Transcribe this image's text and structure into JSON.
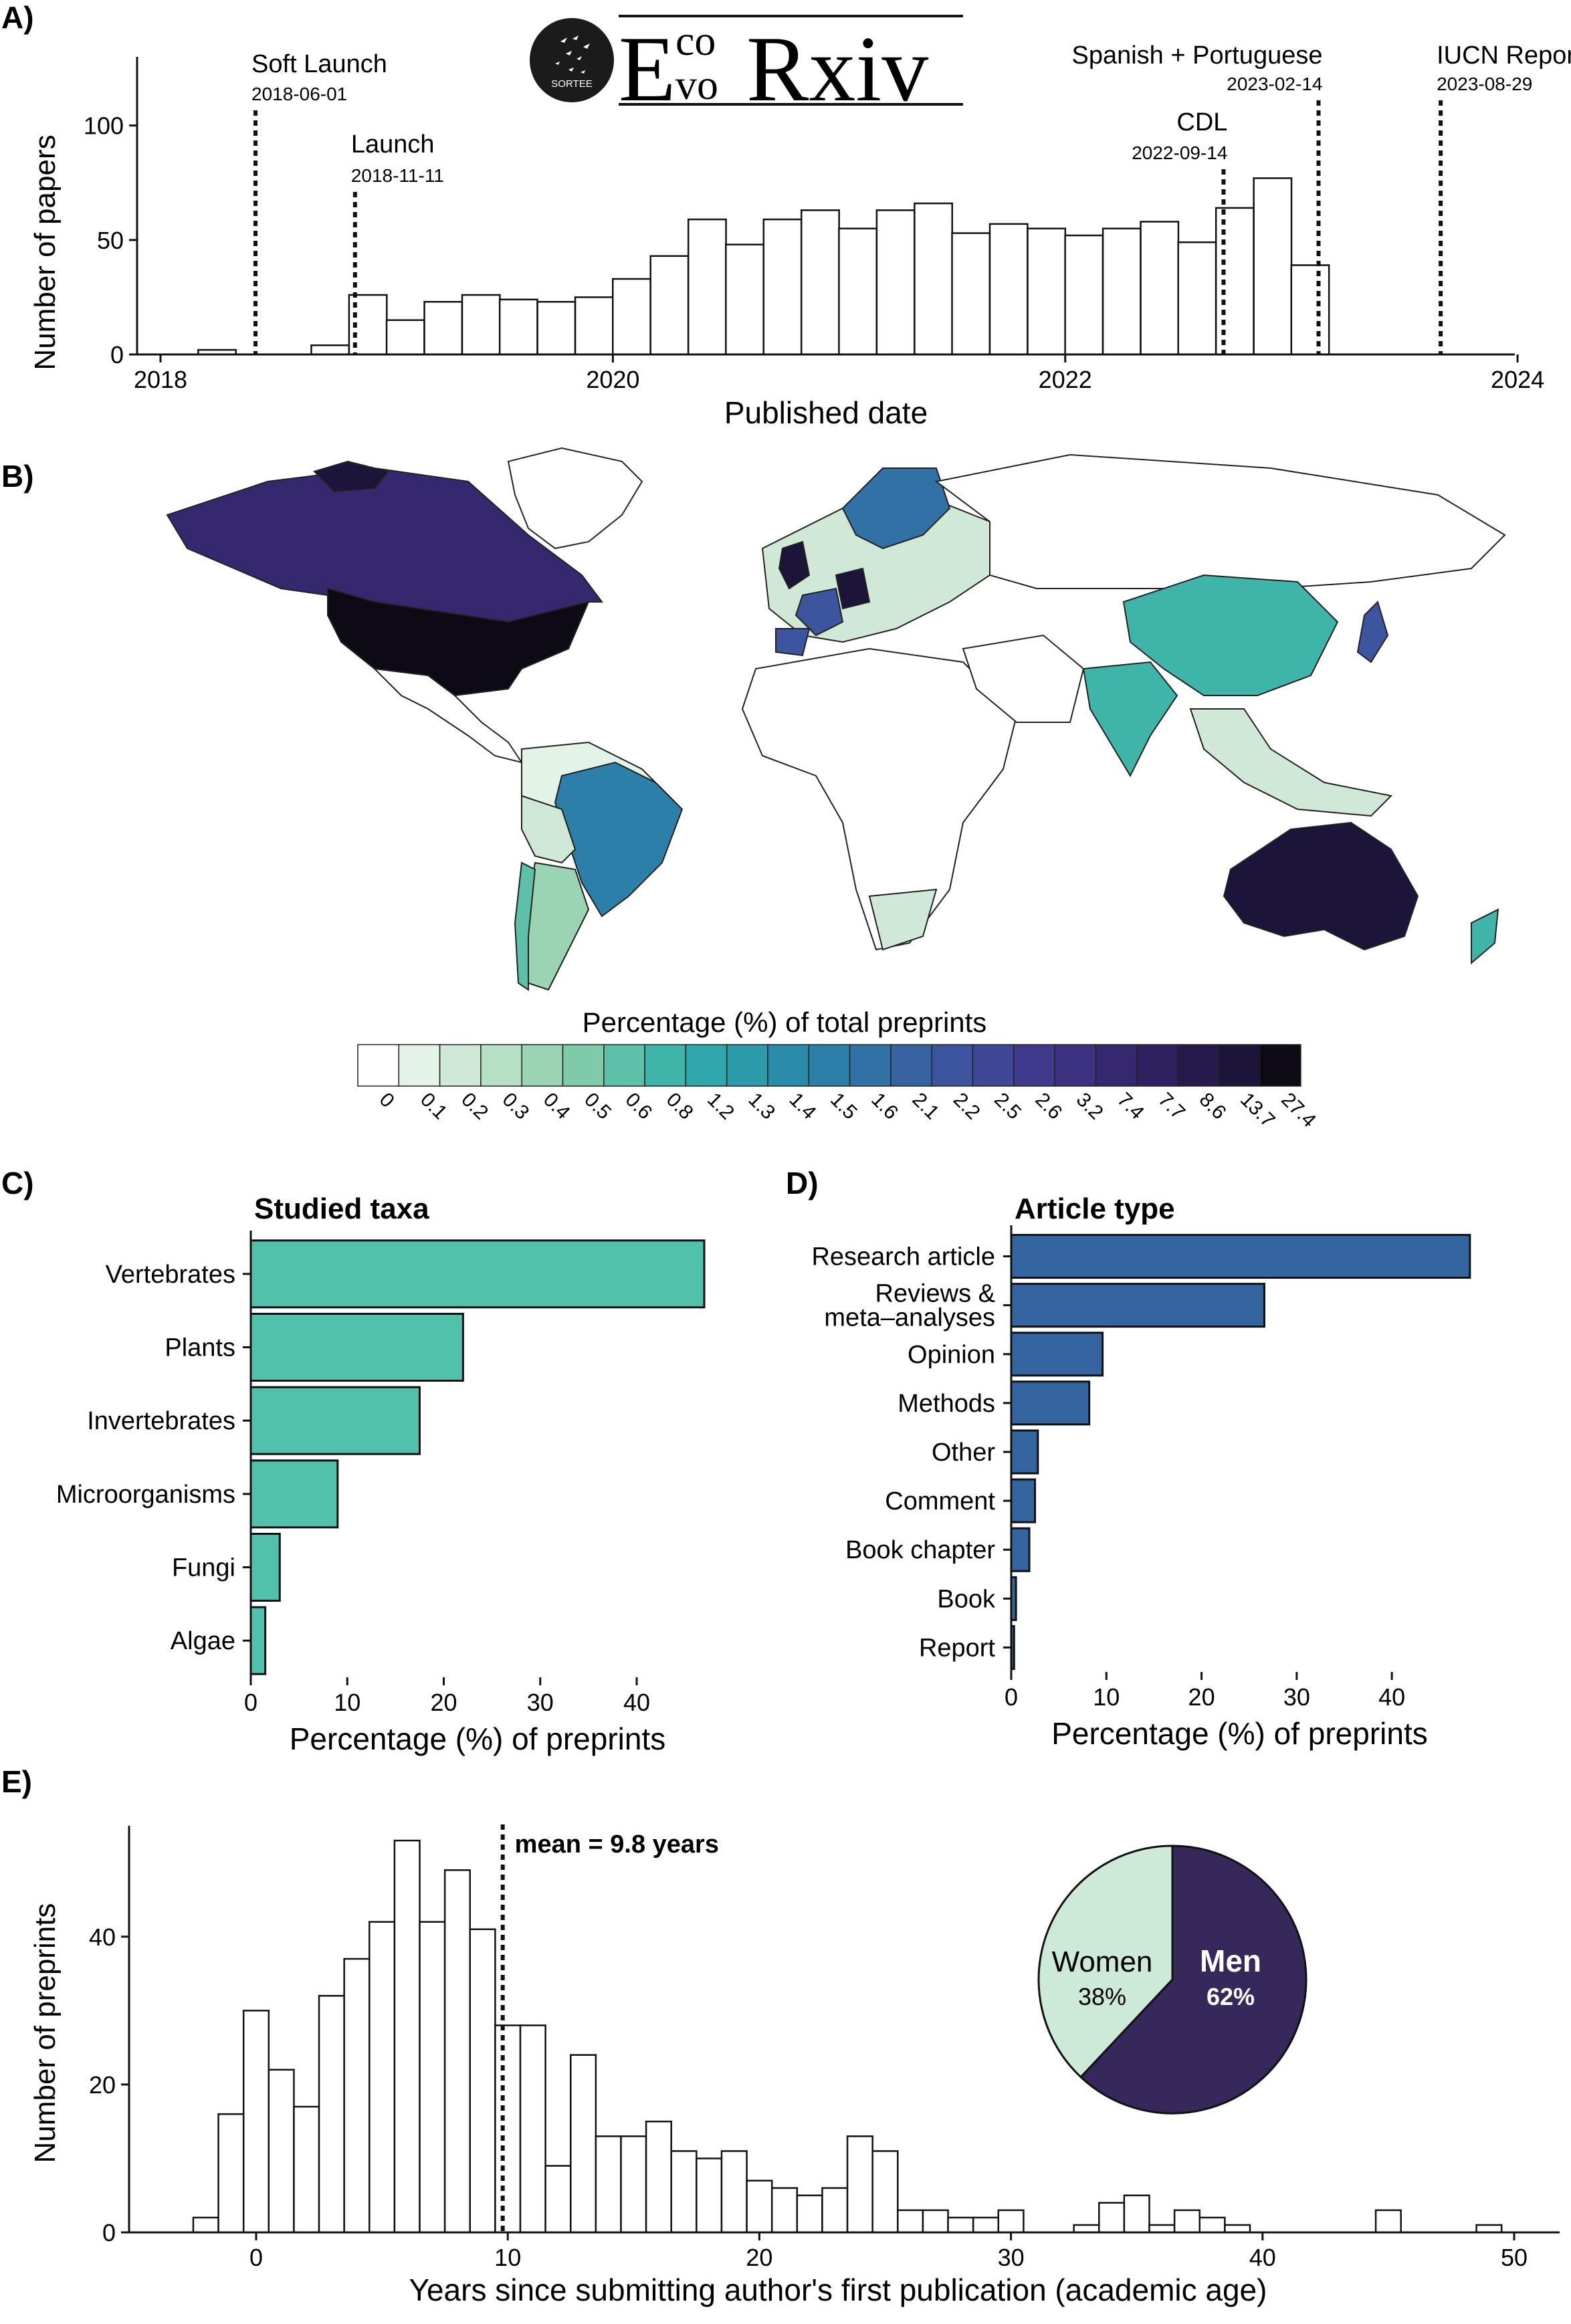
{
  "panels": {
    "a": "A)",
    "b": "B)",
    "c": "C)",
    "d": "D)",
    "e": "E)"
  },
  "logo": {
    "text_small_top": "co",
    "text_small_bottom": "vo",
    "letter_e": "E",
    "text_large": "Rxiv",
    "badge": "SORTEE"
  },
  "colors": {
    "teal_bar": "#52c1ab",
    "blue_bar": "#3465a0",
    "pie_women": "#cde9d8",
    "pie_men": "#36285a"
  },
  "chart_data": [
    {
      "id": "A",
      "type": "bar",
      "xlabel": "Published date",
      "ylabel": "Number of papers",
      "xlim": [
        2018.0,
        2024.0
      ],
      "ylim": [
        0,
        130
      ],
      "xticks": [
        2018,
        2020,
        2022,
        2024
      ],
      "yticks": [
        0,
        50,
        100
      ],
      "bin_width_years": 0.1667,
      "x": [
        2018.083,
        2018.25,
        2018.417,
        2018.583,
        2018.75,
        2018.917,
        2019.083,
        2019.25,
        2019.417,
        2019.583,
        2019.75,
        2019.917,
        2020.083,
        2020.25,
        2020.417,
        2020.583,
        2020.75,
        2020.917,
        2021.083,
        2021.25,
        2021.417,
        2021.583,
        2021.75,
        2021.917,
        2022.083,
        2022.25,
        2022.417,
        2022.583,
        2022.75,
        2022.917,
        2023.083,
        2023.25,
        2023.417,
        2023.583,
        2023.75
      ],
      "values": [
        0,
        2,
        0,
        0,
        4,
        26,
        15,
        23,
        26,
        24,
        23,
        25,
        33,
        43,
        59,
        48,
        59,
        63,
        55,
        63,
        66,
        53,
        57,
        55,
        52,
        55,
        58,
        49,
        64,
        77,
        39,
        0,
        0,
        0,
        0
      ],
      "events": [
        {
          "label": "Soft Launch",
          "date": "2018-06-01",
          "x": 2018.42
        },
        {
          "label": "Launch",
          "date": "2018-11-11",
          "x": 2018.86
        },
        {
          "label": "CDL",
          "date": "2022-09-14",
          "x": 2022.7
        },
        {
          "label": "Spanish + Portuguese",
          "date": "2023-02-14",
          "x": 2023.12
        },
        {
          "label": "IUCN Report",
          "date": "2023-08-29",
          "x": 2023.66
        }
      ]
    },
    {
      "id": "B",
      "type": "heatmap",
      "legend_title": "Percentage (%) of total preprints",
      "legend_breaks": [
        "0",
        "0.1",
        "0.2",
        "0.3",
        "0.4",
        "0.5",
        "0.6",
        "0.8",
        "1.2",
        "1.3",
        "1.4",
        "1.5",
        "1.6",
        "2.1",
        "2.2",
        "2.5",
        "2.6",
        "3.2",
        "7.4",
        "7.7",
        "8.6",
        "13.7",
        "27.4"
      ],
      "legend_colors": [
        "#ffffff",
        "#e3f3e8",
        "#cfe9d6",
        "#b7dfc3",
        "#9bd4b2",
        "#7fcaa8",
        "#5ec0a8",
        "#3fb5a9",
        "#30a8ab",
        "#2b9aaa",
        "#2a8ca9",
        "#2c7fa8",
        "#3171a6",
        "#3763a3",
        "#3c559e",
        "#3f4797",
        "#3f3b8c",
        "#3c3180",
        "#36286f",
        "#2f205f",
        "#261a4d",
        "#1c1439",
        "#0d0a16"
      ],
      "regions": [
        {
          "name": "United States",
          "value": 27.4
        },
        {
          "name": "Australia",
          "value": 13.7
        },
        {
          "name": "Canada",
          "value": 7.7
        },
        {
          "name": "Brazil",
          "value": 1.6
        },
        {
          "name": "China",
          "value": 0.8
        },
        {
          "name": "India",
          "value": 0.8
        }
      ]
    },
    {
      "id": "C",
      "type": "bar",
      "orientation": "horizontal",
      "title": "Studied taxa",
      "xlabel": "Percentage (%) of preprints",
      "xlim": [
        0,
        47
      ],
      "xticks": [
        0,
        10,
        20,
        30,
        40
      ],
      "categories": [
        "Vertebrates",
        "Plants",
        "Invertebrates",
        "Microorganisms",
        "Fungi",
        "Algae"
      ],
      "values": [
        47,
        22,
        17.5,
        9,
        3,
        1.5
      ]
    },
    {
      "id": "D",
      "type": "bar",
      "orientation": "horizontal",
      "title": "Article type",
      "xlabel": "Percentage (%) of preprints",
      "xlim": [
        0,
        48
      ],
      "xticks": [
        0,
        10,
        20,
        30,
        40
      ],
      "categories": [
        "Research article",
        "Reviews & meta–analyses",
        "Opinion",
        "Methods",
        "Other",
        "Comment",
        "Book chapter",
        "Book",
        "Report"
      ],
      "category_lines": [
        [
          "Research article"
        ],
        [
          "Reviews &",
          "meta–analyses"
        ],
        [
          "Opinion"
        ],
        [
          "Methods"
        ],
        [
          "Other"
        ],
        [
          "Comment"
        ],
        [
          "Book chapter"
        ],
        [
          "Book"
        ],
        [
          "Report"
        ]
      ],
      "values": [
        48.2,
        26.6,
        9.6,
        8.2,
        2.8,
        2.5,
        1.9,
        0.5,
        0.3
      ]
    },
    {
      "id": "E",
      "type": "bar",
      "xlabel": "Years since submitting author's first publication (academic age)",
      "ylabel": "Number of preprints",
      "xlim": [
        -2.5,
        51
      ],
      "ylim": [
        0,
        55
      ],
      "xticks": [
        0,
        10,
        20,
        30,
        40,
        50
      ],
      "yticks": [
        0,
        20,
        40
      ],
      "bin_width": 1,
      "x": [
        -2,
        -1,
        0,
        1,
        2,
        3,
        4,
        5,
        6,
        7,
        8,
        9,
        10,
        11,
        12,
        13,
        14,
        15,
        16,
        17,
        18,
        19,
        20,
        21,
        22,
        23,
        24,
        25,
        26,
        27,
        28,
        29,
        30,
        31,
        32,
        33,
        34,
        35,
        36,
        37,
        38,
        39,
        40,
        41,
        42,
        43,
        44,
        45,
        46,
        47,
        48,
        49
      ],
      "values": [
        2,
        16,
        30,
        22,
        17,
        32,
        37,
        42,
        53,
        42,
        49,
        41,
        28,
        28,
        9,
        24,
        13,
        13,
        15,
        11,
        10,
        11,
        7,
        6,
        5,
        6,
        13,
        11,
        3,
        3,
        2,
        2,
        3,
        0,
        0,
        1,
        4,
        5,
        1,
        3,
        2,
        1,
        0,
        0,
        0,
        0,
        0,
        3,
        0,
        0,
        0,
        1
      ],
      "annotations": [
        {
          "text": "mean = 9.8 years",
          "x": 9.8
        }
      ],
      "inset": {
        "type": "pie",
        "labels": [
          "Women",
          "Men"
        ],
        "values": [
          38,
          62
        ],
        "percent_labels": [
          "38%",
          "62%"
        ]
      }
    }
  ]
}
